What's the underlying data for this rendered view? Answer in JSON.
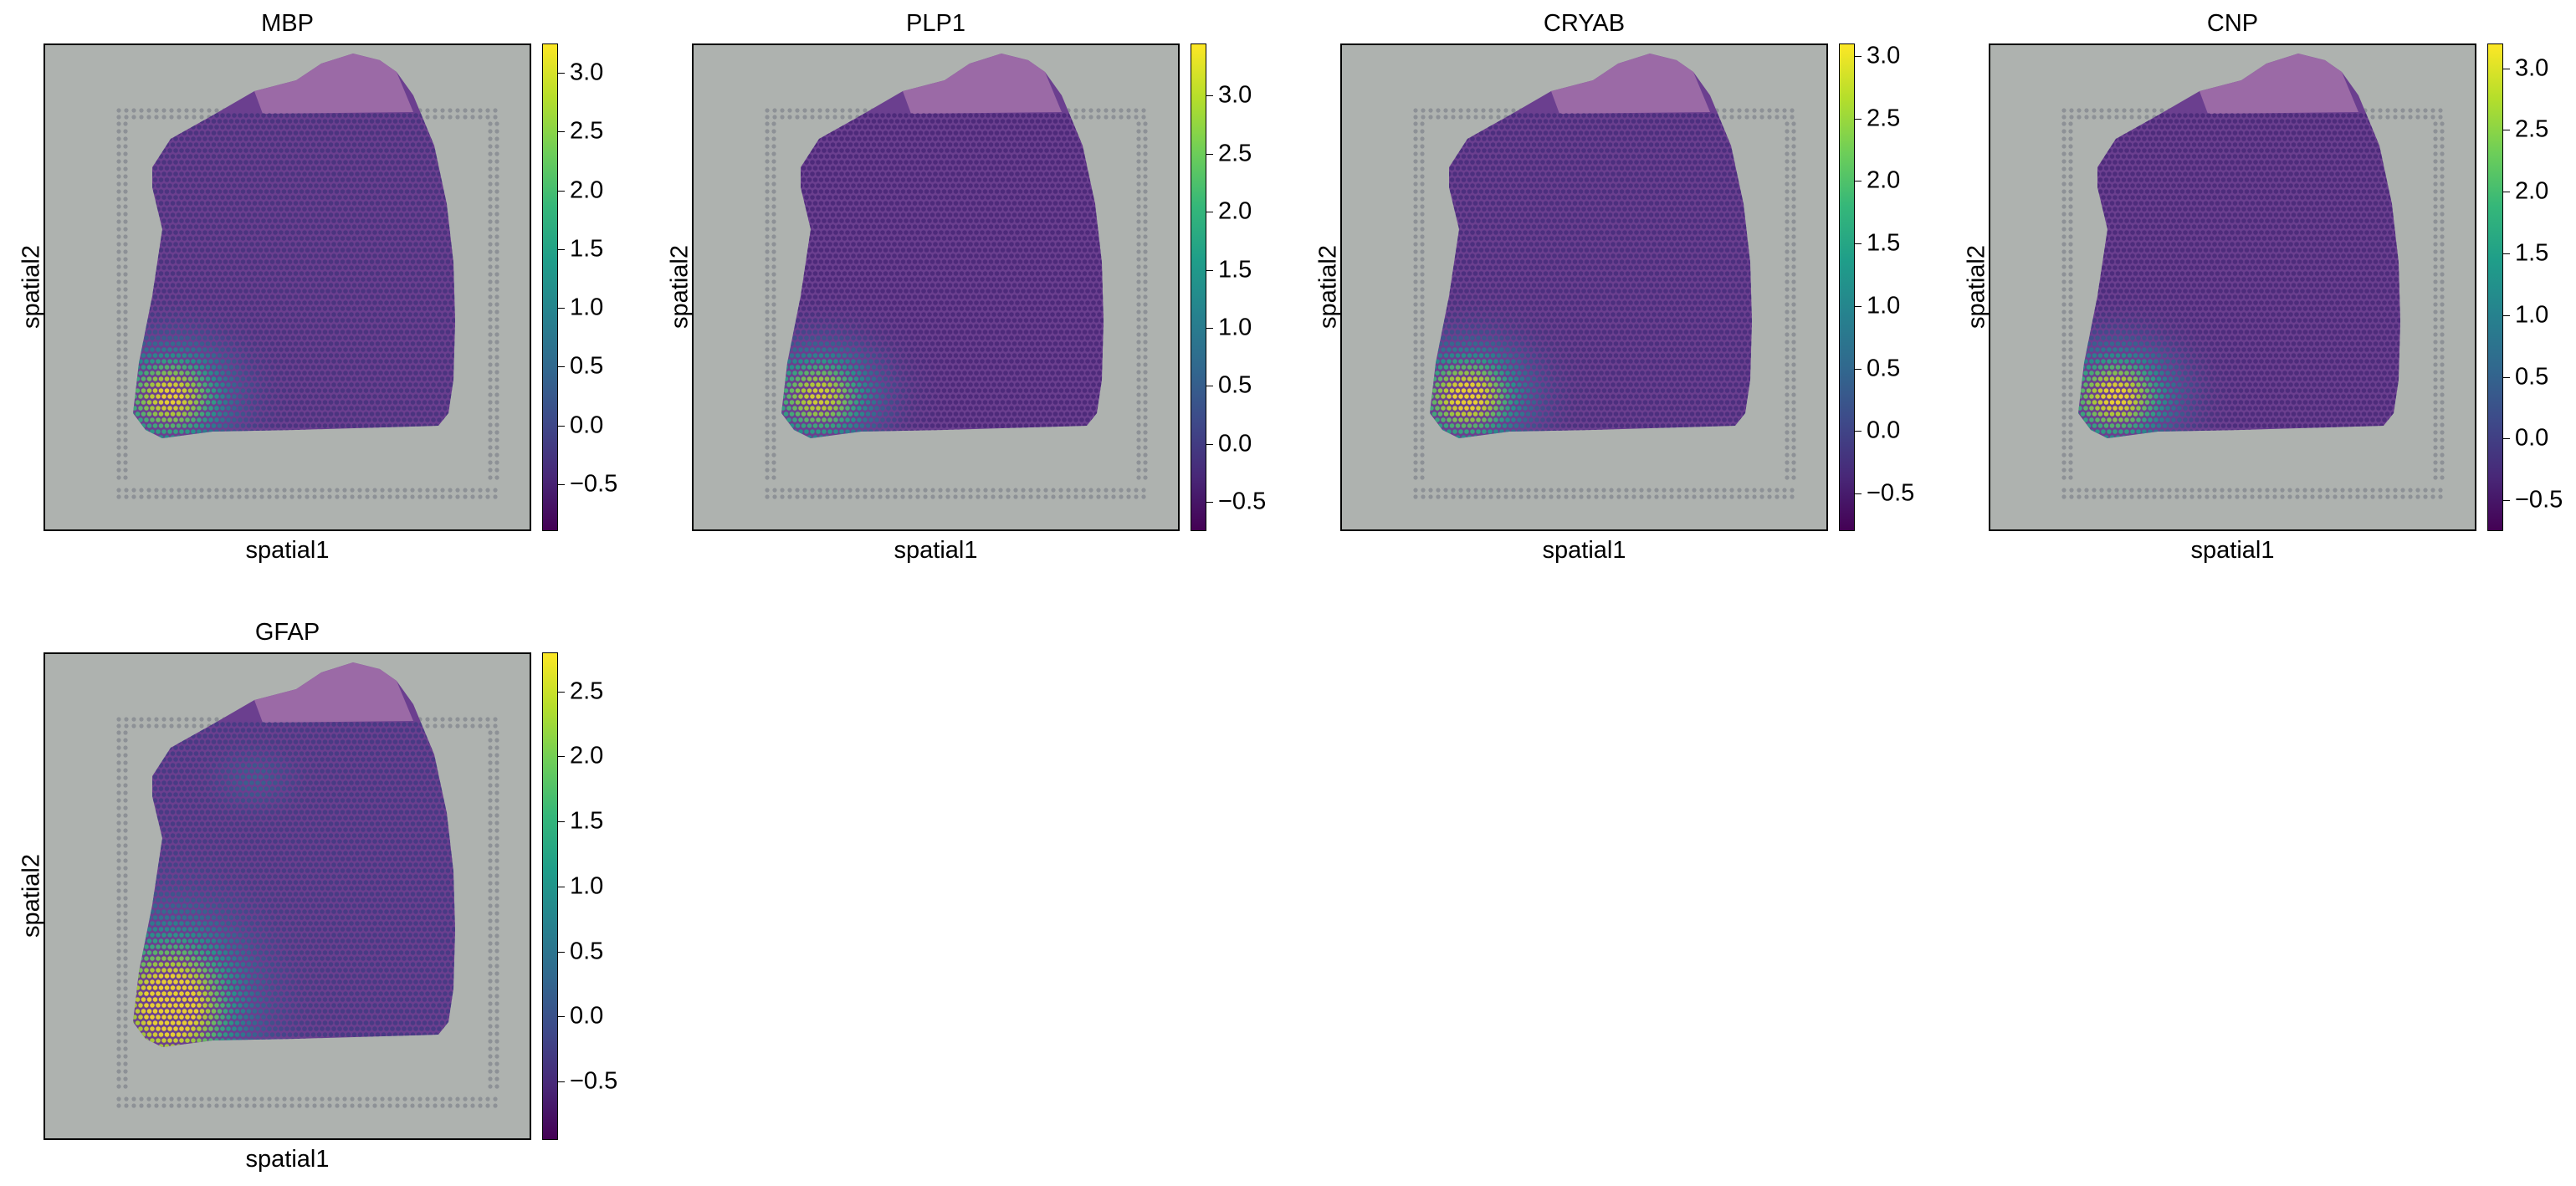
{
  "colors": {
    "background": "#aeb2af",
    "tissue": "#6b3f8f",
    "tissue_top": "#9b6aa6",
    "viridis": [
      "#440154",
      "#482878",
      "#3e4989",
      "#31688e",
      "#26828e",
      "#1f9e89",
      "#35b779",
      "#6ece58",
      "#b5de2b",
      "#fde725"
    ]
  },
  "chart_data": [
    {
      "type": "heatmap",
      "title": "MBP",
      "xlabel": "spatial1",
      "ylabel": "spatial2",
      "colormap": "viridis",
      "colorbar_range": [
        -0.9,
        3.25
      ],
      "colorbar_ticks": [
        "−0.5",
        "0.0",
        "0.5",
        "1.0",
        "1.5",
        "2.0",
        "2.5",
        "3.0"
      ],
      "colorbar_tick_values": [
        -0.5,
        0,
        0.5,
        1,
        1.5,
        2,
        2.5,
        3
      ],
      "hotspot": "lower-left"
    },
    {
      "type": "heatmap",
      "title": "PLP1",
      "xlabel": "spatial1",
      "ylabel": "spatial2",
      "colormap": "viridis",
      "colorbar_range": [
        -0.75,
        3.45
      ],
      "colorbar_ticks": [
        "−0.5",
        "0.0",
        "0.5",
        "1.0",
        "1.5",
        "2.0",
        "2.5",
        "3.0"
      ],
      "colorbar_tick_values": [
        -0.5,
        0,
        0.5,
        1,
        1.5,
        2,
        2.5,
        3
      ],
      "hotspot": "lower-left"
    },
    {
      "type": "heatmap",
      "title": "CRYAB",
      "xlabel": "spatial1",
      "ylabel": "spatial2",
      "colormap": "viridis",
      "colorbar_range": [
        -0.8,
        3.1
      ],
      "colorbar_ticks": [
        "−0.5",
        "0.0",
        "0.5",
        "1.0",
        "1.5",
        "2.0",
        "2.5",
        "3.0"
      ],
      "colorbar_tick_values": [
        -0.5,
        0,
        0.5,
        1,
        1.5,
        2,
        2.5,
        3
      ],
      "hotspot": "lower-left"
    },
    {
      "type": "heatmap",
      "title": "CNP",
      "xlabel": "spatial1",
      "ylabel": "spatial2",
      "colormap": "viridis",
      "colorbar_range": [
        -0.75,
        3.2
      ],
      "colorbar_ticks": [
        "−0.5",
        "0.0",
        "0.5",
        "1.0",
        "1.5",
        "2.0",
        "2.5",
        "3.0"
      ],
      "colorbar_tick_values": [
        -0.5,
        0,
        0.5,
        1,
        1.5,
        2,
        2.5,
        3
      ],
      "hotspot": "lower-left"
    },
    {
      "type": "heatmap",
      "title": "GFAP",
      "xlabel": "spatial1",
      "ylabel": "spatial2",
      "colormap": "viridis",
      "colorbar_range": [
        -0.95,
        2.8
      ],
      "colorbar_ticks": [
        "−0.5",
        "0.0",
        "0.5",
        "1.0",
        "1.5",
        "2.0",
        "2.5"
      ],
      "colorbar_tick_values": [
        -0.5,
        0,
        0.5,
        1,
        1.5,
        2,
        2.5
      ],
      "hotspot": "lower-left-wide"
    }
  ]
}
